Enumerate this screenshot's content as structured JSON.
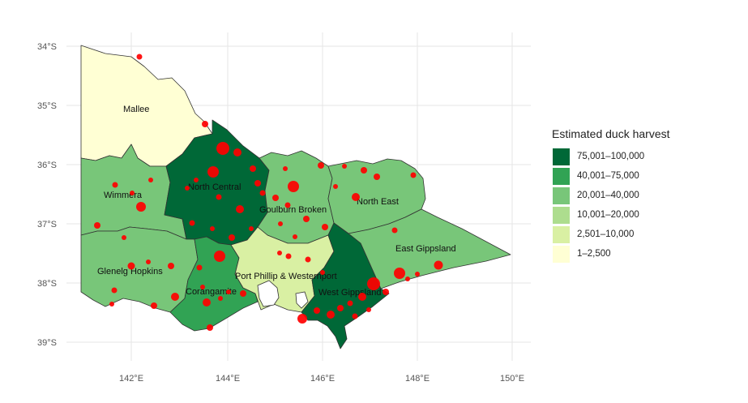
{
  "map": {
    "y_axis_labels": [
      "34°S",
      "35°S",
      "36°S",
      "37°S",
      "38°S",
      "39°S"
    ],
    "x_axis_labels": [
      "142°E",
      "144°E",
      "146°E",
      "148°E",
      "150°E"
    ],
    "regions": [
      {
        "name": "Mallee",
        "class": "1–2,500",
        "color": "#ffffd4"
      },
      {
        "name": "Wimmera",
        "class": "20,001–40,000",
        "color": "#78c679"
      },
      {
        "name": "North Central",
        "class": "75,001–100,000",
        "color": "#006837"
      },
      {
        "name": "Goulburn Broken",
        "class": "20,001–40,000",
        "color": "#78c679"
      },
      {
        "name": "North East",
        "class": "20,001–40,000",
        "color": "#78c679"
      },
      {
        "name": "East Gippsland",
        "class": "20,001–40,000",
        "color": "#78c679"
      },
      {
        "name": "Glenelg Hopkins",
        "class": "20,001–40,000",
        "color": "#78c679"
      },
      {
        "name": "Corangamite",
        "class": "40,001–75,000",
        "color": "#31a354"
      },
      {
        "name": "Port Phillip & Westernport",
        "class": "2,501–10,000",
        "color": "#d9f0a3"
      },
      {
        "name": "West Gippsland",
        "class": "75,001–100,000",
        "color": "#006837"
      }
    ],
    "point_color": "#ff0000"
  },
  "legend": {
    "title": "Estimated duck harvest",
    "items": [
      {
        "label": "75,001–100,000",
        "color": "#006837"
      },
      {
        "label": "40,001–75,000",
        "color": "#31a354"
      },
      {
        "label": "20,001–40,000",
        "color": "#78c679"
      },
      {
        "label": "10,001–20,000",
        "color": "#addd8e"
      },
      {
        "label": "2,501–10,000",
        "color": "#d9f0a3"
      },
      {
        "label": "1–2,500",
        "color": "#ffffd4"
      }
    ]
  }
}
